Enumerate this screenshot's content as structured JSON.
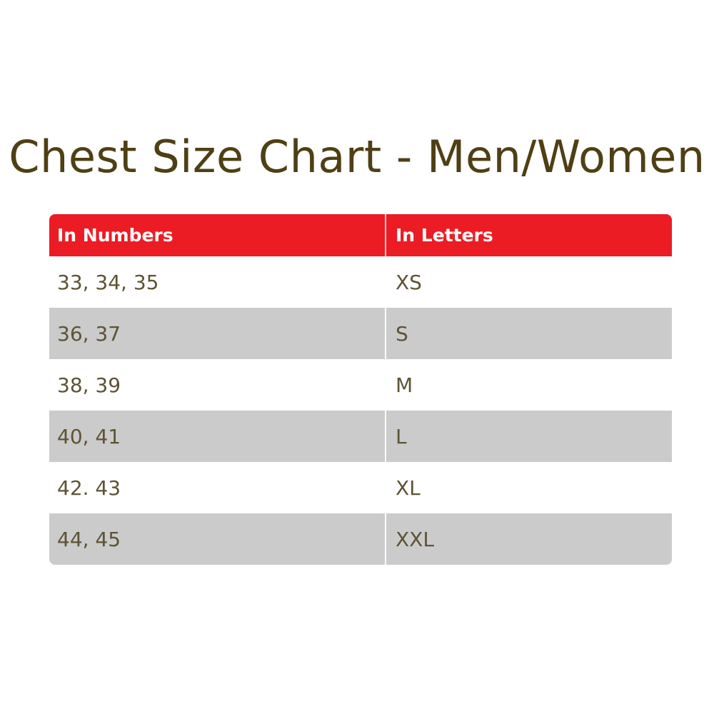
{
  "title": "Chest Size Chart - Men/Women",
  "header_color": "#ec1c24",
  "table": {
    "headers": [
      "In Numbers",
      "In Letters"
    ],
    "rows": [
      [
        "33, 34, 35",
        "XS"
      ],
      [
        "36, 37",
        "S"
      ],
      [
        "38, 39",
        "M"
      ],
      [
        "40, 41",
        "L"
      ],
      [
        "42. 43",
        "XL"
      ],
      [
        "44, 45",
        "XXL"
      ]
    ]
  }
}
